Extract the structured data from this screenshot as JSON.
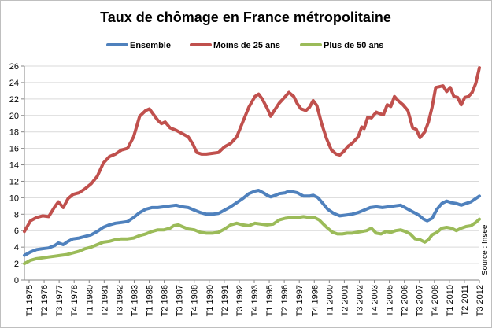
{
  "colors": {
    "Ensemble": "#4f81bd",
    "Moins de 25 ans": "#c0504d",
    "Plus de 50 ans": "#9bbb59",
    "grid": "#d9d9d9"
  },
  "chart_data": {
    "type": "line",
    "title": "Taux de chômage en France métropolitaine",
    "xlabel": "",
    "ylabel": "",
    "ylim": [
      0,
      26
    ],
    "yticks": [
      0,
      2,
      4,
      6,
      8,
      10,
      12,
      14,
      16,
      18,
      20,
      22,
      24,
      26
    ],
    "grid": true,
    "legend_position": "top",
    "source_note": "Source : Insee",
    "x_tick_labels": [
      "T1 1975",
      "T2 1976",
      "T3 1977",
      "T4 1978",
      "T1 1980",
      "T2 1981",
      "T3 1982",
      "T4 1983",
      "T1 1985",
      "T2 1986",
      "T3 1987",
      "T4 1988",
      "T1 1990",
      "T2 1991",
      "T3 1992",
      "T4 1993",
      "T1 1995",
      "T2 1996",
      "T3 1997",
      "T4 1998",
      "T1 2000",
      "T2 2001",
      "T3 2002",
      "T4 2003",
      "T1 2005",
      "T2 2006",
      "T3 2007",
      "T4 2008",
      "T1 2010",
      "T2 2011",
      "T3 2012"
    ],
    "x_range": [
      1975.0,
      2012.5
    ],
    "series": [
      {
        "name": "Moins de 25 ans",
        "points": [
          [
            1975.0,
            5.9
          ],
          [
            1975.5,
            7.2
          ],
          [
            1976.0,
            7.6
          ],
          [
            1976.5,
            7.8
          ],
          [
            1977.0,
            7.7
          ],
          [
            1977.5,
            8.9
          ],
          [
            1977.8,
            9.5
          ],
          [
            1978.2,
            8.8
          ],
          [
            1978.6,
            9.9
          ],
          [
            1979.0,
            10.4
          ],
          [
            1979.5,
            10.6
          ],
          [
            1980.0,
            11.1
          ],
          [
            1980.5,
            11.7
          ],
          [
            1981.0,
            12.6
          ],
          [
            1981.5,
            14.2
          ],
          [
            1982.0,
            15.0
          ],
          [
            1982.5,
            15.3
          ],
          [
            1983.0,
            15.8
          ],
          [
            1983.5,
            16.0
          ],
          [
            1984.0,
            17.4
          ],
          [
            1984.5,
            19.9
          ],
          [
            1985.0,
            20.6
          ],
          [
            1985.3,
            20.8
          ],
          [
            1985.7,
            20.0
          ],
          [
            1986.0,
            19.4
          ],
          [
            1986.3,
            19.0
          ],
          [
            1986.6,
            19.2
          ],
          [
            1987.0,
            18.5
          ],
          [
            1987.5,
            18.2
          ],
          [
            1988.0,
            17.8
          ],
          [
            1988.5,
            17.4
          ],
          [
            1988.9,
            16.5
          ],
          [
            1989.2,
            15.5
          ],
          [
            1989.6,
            15.3
          ],
          [
            1990.0,
            15.3
          ],
          [
            1990.5,
            15.4
          ],
          [
            1991.0,
            15.5
          ],
          [
            1991.5,
            16.2
          ],
          [
            1992.0,
            16.6
          ],
          [
            1992.5,
            17.4
          ],
          [
            1993.0,
            19.2
          ],
          [
            1993.5,
            21.0
          ],
          [
            1994.0,
            22.3
          ],
          [
            1994.3,
            22.6
          ],
          [
            1994.6,
            22.0
          ],
          [
            1995.0,
            20.9
          ],
          [
            1995.3,
            19.9
          ],
          [
            1995.6,
            20.6
          ],
          [
            1996.0,
            21.5
          ],
          [
            1996.5,
            22.3
          ],
          [
            1996.8,
            22.8
          ],
          [
            1997.2,
            22.3
          ],
          [
            1997.5,
            21.4
          ],
          [
            1997.8,
            20.8
          ],
          [
            1998.2,
            20.6
          ],
          [
            1998.5,
            21.0
          ],
          [
            1998.8,
            21.8
          ],
          [
            1999.1,
            21.2
          ],
          [
            1999.5,
            19.0
          ],
          [
            1999.9,
            17.2
          ],
          [
            2000.3,
            15.8
          ],
          [
            2000.7,
            15.3
          ],
          [
            2001.0,
            15.2
          ],
          [
            2001.3,
            15.6
          ],
          [
            2001.7,
            16.3
          ],
          [
            2002.0,
            16.6
          ],
          [
            2002.5,
            17.4
          ],
          [
            2002.8,
            18.6
          ],
          [
            2003.0,
            18.4
          ],
          [
            2003.3,
            19.8
          ],
          [
            2003.6,
            19.7
          ],
          [
            2004.0,
            20.4
          ],
          [
            2004.3,
            20.2
          ],
          [
            2004.6,
            20.1
          ],
          [
            2004.9,
            21.3
          ],
          [
            2005.2,
            21.1
          ],
          [
            2005.5,
            22.3
          ],
          [
            2005.8,
            21.8
          ],
          [
            2006.2,
            21.3
          ],
          [
            2006.6,
            20.6
          ],
          [
            2007.0,
            18.5
          ],
          [
            2007.3,
            18.3
          ],
          [
            2007.6,
            17.3
          ],
          [
            2008.0,
            18.0
          ],
          [
            2008.3,
            19.2
          ],
          [
            2008.6,
            21.0
          ],
          [
            2008.9,
            23.4
          ],
          [
            2009.2,
            23.5
          ],
          [
            2009.5,
            23.6
          ],
          [
            2009.8,
            22.9
          ],
          [
            2010.1,
            23.4
          ],
          [
            2010.4,
            22.3
          ],
          [
            2010.7,
            22.2
          ],
          [
            2011.0,
            21.3
          ],
          [
            2011.3,
            22.2
          ],
          [
            2011.6,
            22.3
          ],
          [
            2011.9,
            22.8
          ],
          [
            2012.2,
            23.9
          ],
          [
            2012.5,
            25.8
          ]
        ]
      },
      {
        "name": "Ensemble",
        "points": [
          [
            1975.0,
            3.0
          ],
          [
            1975.5,
            3.4
          ],
          [
            1976.0,
            3.7
          ],
          [
            1976.5,
            3.8
          ],
          [
            1977.0,
            3.9
          ],
          [
            1977.5,
            4.2
          ],
          [
            1977.8,
            4.5
          ],
          [
            1978.2,
            4.3
          ],
          [
            1978.6,
            4.7
          ],
          [
            1979.0,
            5.0
          ],
          [
            1979.5,
            5.1
          ],
          [
            1980.0,
            5.3
          ],
          [
            1980.5,
            5.5
          ],
          [
            1981.0,
            5.9
          ],
          [
            1981.5,
            6.4
          ],
          [
            1982.0,
            6.7
          ],
          [
            1982.5,
            6.9
          ],
          [
            1983.0,
            7.0
          ],
          [
            1983.5,
            7.1
          ],
          [
            1984.0,
            7.6
          ],
          [
            1984.5,
            8.2
          ],
          [
            1985.0,
            8.6
          ],
          [
            1985.5,
            8.8
          ],
          [
            1986.0,
            8.8
          ],
          [
            1986.5,
            8.9
          ],
          [
            1987.0,
            9.0
          ],
          [
            1987.5,
            9.1
          ],
          [
            1988.0,
            8.9
          ],
          [
            1988.5,
            8.8
          ],
          [
            1989.0,
            8.5
          ],
          [
            1989.5,
            8.2
          ],
          [
            1990.0,
            8.0
          ],
          [
            1990.5,
            8.0
          ],
          [
            1991.0,
            8.1
          ],
          [
            1991.5,
            8.5
          ],
          [
            1992.0,
            8.9
          ],
          [
            1992.5,
            9.4
          ],
          [
            1993.0,
            9.9
          ],
          [
            1993.5,
            10.5
          ],
          [
            1994.0,
            10.8
          ],
          [
            1994.3,
            10.9
          ],
          [
            1994.7,
            10.6
          ],
          [
            1995.0,
            10.3
          ],
          [
            1995.3,
            10.1
          ],
          [
            1995.7,
            10.3
          ],
          [
            1996.0,
            10.5
          ],
          [
            1996.5,
            10.6
          ],
          [
            1996.8,
            10.8
          ],
          [
            1997.2,
            10.7
          ],
          [
            1997.5,
            10.6
          ],
          [
            1998.0,
            10.2
          ],
          [
            1998.5,
            10.2
          ],
          [
            1998.8,
            10.3
          ],
          [
            1999.2,
            10.0
          ],
          [
            1999.6,
            9.3
          ],
          [
            2000.0,
            8.6
          ],
          [
            2000.5,
            8.1
          ],
          [
            2001.0,
            7.8
          ],
          [
            2001.5,
            7.9
          ],
          [
            2002.0,
            8.0
          ],
          [
            2002.5,
            8.2
          ],
          [
            2003.0,
            8.5
          ],
          [
            2003.5,
            8.8
          ],
          [
            2004.0,
            8.9
          ],
          [
            2004.5,
            8.8
          ],
          [
            2005.0,
            8.9
          ],
          [
            2005.5,
            9.0
          ],
          [
            2006.0,
            9.1
          ],
          [
            2006.5,
            8.7
          ],
          [
            2007.0,
            8.3
          ],
          [
            2007.5,
            7.9
          ],
          [
            2007.9,
            7.4
          ],
          [
            2008.2,
            7.2
          ],
          [
            2008.6,
            7.5
          ],
          [
            2009.0,
            8.6
          ],
          [
            2009.4,
            9.3
          ],
          [
            2009.8,
            9.6
          ],
          [
            2010.2,
            9.4
          ],
          [
            2010.6,
            9.3
          ],
          [
            2011.0,
            9.1
          ],
          [
            2011.4,
            9.3
          ],
          [
            2011.8,
            9.5
          ],
          [
            2012.2,
            9.9
          ],
          [
            2012.5,
            10.2
          ]
        ]
      },
      {
        "name": "Plus de 50 ans",
        "points": [
          [
            1975.0,
            2.0
          ],
          [
            1975.5,
            2.4
          ],
          [
            1976.0,
            2.6
          ],
          [
            1976.5,
            2.7
          ],
          [
            1977.0,
            2.8
          ],
          [
            1977.5,
            2.9
          ],
          [
            1978.0,
            3.0
          ],
          [
            1978.5,
            3.1
          ],
          [
            1979.0,
            3.3
          ],
          [
            1979.5,
            3.5
          ],
          [
            1980.0,
            3.8
          ],
          [
            1980.5,
            4.0
          ],
          [
            1981.0,
            4.3
          ],
          [
            1981.5,
            4.6
          ],
          [
            1982.0,
            4.7
          ],
          [
            1982.5,
            4.9
          ],
          [
            1983.0,
            5.0
          ],
          [
            1983.5,
            5.0
          ],
          [
            1984.0,
            5.1
          ],
          [
            1984.5,
            5.4
          ],
          [
            1985.0,
            5.6
          ],
          [
            1985.5,
            5.9
          ],
          [
            1986.0,
            6.1
          ],
          [
            1986.5,
            6.1
          ],
          [
            1987.0,
            6.3
          ],
          [
            1987.3,
            6.6
          ],
          [
            1987.7,
            6.7
          ],
          [
            1988.0,
            6.5
          ],
          [
            1988.5,
            6.2
          ],
          [
            1989.0,
            6.1
          ],
          [
            1989.5,
            5.8
          ],
          [
            1990.0,
            5.7
          ],
          [
            1990.5,
            5.7
          ],
          [
            1991.0,
            5.8
          ],
          [
            1991.5,
            6.2
          ],
          [
            1992.0,
            6.7
          ],
          [
            1992.5,
            6.9
          ],
          [
            1993.0,
            6.7
          ],
          [
            1993.5,
            6.6
          ],
          [
            1994.0,
            6.9
          ],
          [
            1994.5,
            6.8
          ],
          [
            1995.0,
            6.7
          ],
          [
            1995.5,
            6.8
          ],
          [
            1996.0,
            7.3
          ],
          [
            1996.5,
            7.5
          ],
          [
            1997.0,
            7.6
          ],
          [
            1997.5,
            7.6
          ],
          [
            1998.0,
            7.7
          ],
          [
            1998.5,
            7.6
          ],
          [
            1998.9,
            7.6
          ],
          [
            1999.3,
            7.3
          ],
          [
            1999.7,
            6.7
          ],
          [
            2000.0,
            6.3
          ],
          [
            2000.4,
            5.8
          ],
          [
            2000.8,
            5.6
          ],
          [
            2001.2,
            5.6
          ],
          [
            2001.6,
            5.7
          ],
          [
            2002.0,
            5.7
          ],
          [
            2002.4,
            5.8
          ],
          [
            2002.8,
            5.9
          ],
          [
            2003.2,
            6.0
          ],
          [
            2003.6,
            6.3
          ],
          [
            2004.0,
            5.7
          ],
          [
            2004.4,
            5.6
          ],
          [
            2004.8,
            5.9
          ],
          [
            2005.2,
            5.8
          ],
          [
            2005.6,
            6.0
          ],
          [
            2006.0,
            6.1
          ],
          [
            2006.4,
            5.9
          ],
          [
            2006.8,
            5.6
          ],
          [
            2007.2,
            5.0
          ],
          [
            2007.6,
            4.9
          ],
          [
            2008.0,
            4.6
          ],
          [
            2008.3,
            4.9
          ],
          [
            2008.6,
            5.5
          ],
          [
            2009.0,
            5.8
          ],
          [
            2009.4,
            6.3
          ],
          [
            2009.8,
            6.4
          ],
          [
            2010.2,
            6.3
          ],
          [
            2010.6,
            6.0
          ],
          [
            2011.0,
            6.3
          ],
          [
            2011.4,
            6.5
          ],
          [
            2011.8,
            6.6
          ],
          [
            2012.2,
            7.0
          ],
          [
            2012.5,
            7.4
          ]
        ]
      }
    ]
  },
  "legend": [
    {
      "key": "Ensemble",
      "label": "Ensemble"
    },
    {
      "key": "Moins de 25 ans",
      "label": "Moins de 25 ans"
    },
    {
      "key": "Plus de 50 ans",
      "label": "Plus de 50 ans"
    }
  ]
}
